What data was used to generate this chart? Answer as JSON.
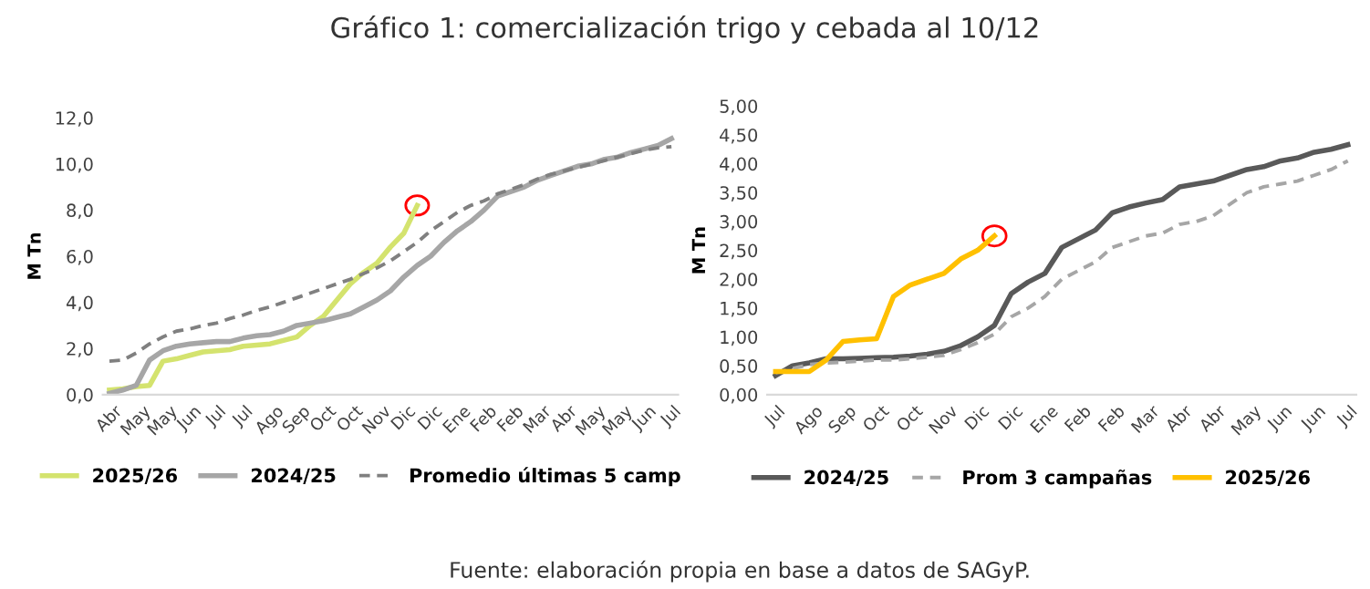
{
  "chart_data": [
    {
      "type": "line",
      "title": "Gráfico 1: comercialización trigo y cebada al 10/12",
      "ylabel": "M Tn",
      "categories": [
        "Abr",
        null,
        "May",
        null,
        "May",
        null,
        "Jun",
        null,
        "Jul",
        null,
        "Jul",
        null,
        "Ago",
        null,
        "Sep",
        null,
        "Oct",
        null,
        "Oct",
        null,
        "Nov",
        null,
        "Dic",
        null,
        "Dic",
        null,
        "Ene",
        null,
        "Feb",
        null,
        "Feb",
        null,
        "Mar",
        null,
        "Abr",
        null,
        "May",
        null,
        "May",
        null,
        "Jun",
        null,
        "Jul"
      ],
      "series": [
        {
          "name": "2025/26",
          "color": "#d4e36e",
          "line_style": "solid",
          "values": [
            0.2,
            0.25,
            0.35,
            0.4,
            1.45,
            1.55,
            1.7,
            1.85,
            1.9,
            1.95,
            2.1,
            2.15,
            2.2,
            2.35,
            2.5,
            3.0,
            3.4,
            4.1,
            4.8,
            5.3,
            5.7,
            6.4,
            7.0,
            8.2,
            null,
            null,
            null,
            null,
            null,
            null,
            null,
            null,
            null,
            null,
            null,
            null,
            null,
            null,
            null,
            null,
            null,
            null,
            null
          ]
        },
        {
          "name": "2024/25",
          "color": "#a6a6a6",
          "line_style": "solid",
          "values": [
            0.05,
            0.2,
            0.4,
            1.5,
            1.9,
            2.1,
            2.2,
            2.25,
            2.3,
            2.3,
            2.45,
            2.55,
            2.6,
            2.75,
            3.0,
            3.1,
            3.2,
            3.35,
            3.5,
            3.8,
            4.1,
            4.5,
            5.1,
            5.6,
            6.0,
            6.6,
            7.1,
            7.5,
            8.0,
            8.6,
            8.8,
            9.0,
            9.3,
            9.5,
            9.7,
            9.9,
            10.0,
            10.2,
            10.3,
            10.5,
            10.65,
            10.8,
            11.1
          ]
        },
        {
          "name": "Promedio últimas 5 camp",
          "color": "#808080",
          "line_style": "dashed",
          "values": [
            1.45,
            1.5,
            1.8,
            2.2,
            2.5,
            2.75,
            2.85,
            3.0,
            3.1,
            3.3,
            3.45,
            3.65,
            3.8,
            4.0,
            4.2,
            4.4,
            4.6,
            4.8,
            5.0,
            5.25,
            5.5,
            5.8,
            6.2,
            6.6,
            7.1,
            7.5,
            7.9,
            8.2,
            8.4,
            8.7,
            8.9,
            9.1,
            9.35,
            9.55,
            9.7,
            9.85,
            10.0,
            10.15,
            10.3,
            10.45,
            10.6,
            10.7,
            10.75
          ]
        }
      ],
      "ylim": [
        0,
        12
      ],
      "yticks": [
        {
          "value": 0,
          "label": "0,0"
        },
        {
          "value": 2,
          "label": "2,0"
        },
        {
          "value": 4,
          "label": "4,0"
        },
        {
          "value": 6,
          "label": "6,0"
        },
        {
          "value": 8,
          "label": "8,0"
        },
        {
          "value": 10,
          "label": "10,0"
        },
        {
          "value": 12,
          "label": "12,0"
        }
      ],
      "grid": false,
      "legend": "bottom",
      "marker": "none"
    },
    {
      "type": "line",
      "ylabel": "M Tn",
      "annotations": [
        "Fuente: elaboración propia en base a datos de SAGyP."
      ],
      "categories": [
        "Jul",
        null,
        "Ago",
        null,
        "Sep",
        null,
        "Oct",
        null,
        "Oct",
        null,
        "Nov",
        null,
        "Dic",
        null,
        "Dic",
        null,
        "Ene",
        null,
        "Feb",
        null,
        "Feb",
        null,
        "Mar",
        null,
        "Abr",
        null,
        "Abr",
        null,
        "May",
        null,
        "Jun",
        null,
        "Jun",
        null,
        "Jul"
      ],
      "series": [
        {
          "name": "2024/25",
          "color": "#595959",
          "line_style": "solid",
          "values": [
            0.33,
            0.5,
            0.55,
            0.62,
            0.62,
            0.63,
            0.64,
            0.65,
            0.67,
            0.7,
            0.75,
            0.85,
            1.0,
            1.2,
            1.75,
            1.95,
            2.1,
            2.55,
            2.7,
            2.85,
            3.15,
            3.25,
            3.32,
            3.38,
            3.6,
            3.65,
            3.7,
            3.8,
            3.9,
            3.95,
            4.05,
            4.1,
            4.2,
            4.25,
            4.33
          ]
        },
        {
          "name": "Prom 3 campañas",
          "color": "#a6a6a6",
          "line_style": "dashed",
          "values": [
            0.38,
            0.45,
            0.52,
            0.55,
            0.56,
            0.58,
            0.6,
            0.6,
            0.62,
            0.65,
            0.68,
            0.78,
            0.9,
            1.05,
            1.35,
            1.5,
            1.7,
            2.0,
            2.15,
            2.3,
            2.55,
            2.65,
            2.75,
            2.8,
            2.95,
            3.0,
            3.1,
            3.3,
            3.5,
            3.6,
            3.65,
            3.7,
            3.8,
            3.9,
            4.05
          ]
        },
        {
          "name": "2025/26",
          "color": "#ffc000",
          "line_style": "solid",
          "values": [
            0.4,
            0.4,
            0.4,
            0.6,
            0.92,
            0.95,
            0.97,
            1.7,
            1.9,
            2.0,
            2.1,
            2.35,
            2.5,
            2.75,
            null,
            null,
            null,
            null,
            null,
            null,
            null,
            null,
            null,
            null,
            null,
            null,
            null,
            null,
            null,
            null,
            null,
            null,
            null,
            null,
            null
          ]
        }
      ],
      "ylim": [
        0,
        5
      ],
      "yticks": [
        {
          "value": 0,
          "label": "0,00"
        },
        {
          "value": 0.5,
          "label": "0,50"
        },
        {
          "value": 1,
          "label": "1,00"
        },
        {
          "value": 1.5,
          "label": "1,50"
        },
        {
          "value": 2,
          "label": "2,00"
        },
        {
          "value": 2.5,
          "label": "2,50"
        },
        {
          "value": 3,
          "label": "3,00"
        },
        {
          "value": 3.5,
          "label": "3,50"
        },
        {
          "value": 4,
          "label": "4,00"
        },
        {
          "value": 4.5,
          "label": "4,50"
        },
        {
          "value": 5,
          "label": "5,00"
        }
      ],
      "grid": false,
      "legend": "bottom",
      "marker": "none"
    }
  ]
}
